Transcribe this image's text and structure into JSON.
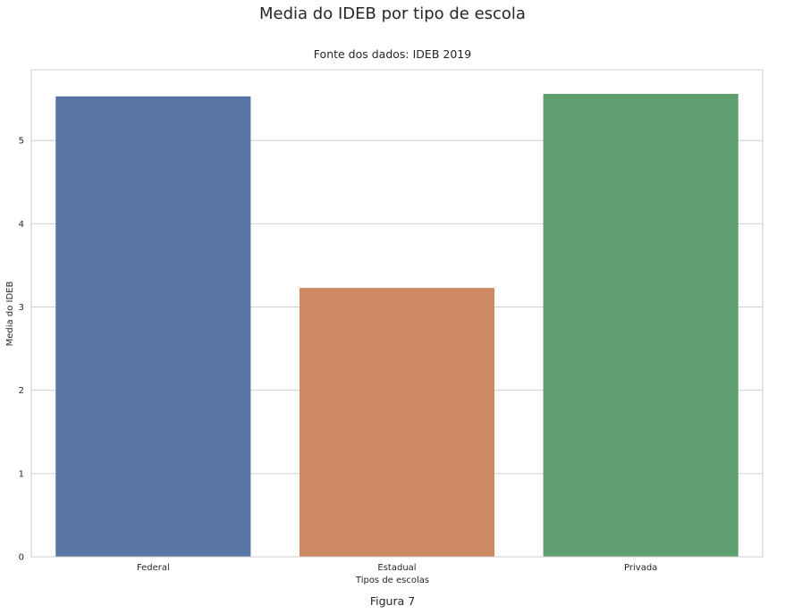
{
  "chart_data": {
    "type": "bar",
    "suptitle": "Media do IDEB por tipo de escola",
    "title": "Fonte dos dados: IDEB 2019",
    "categories": [
      "Federal",
      "Estadual",
      "Privada"
    ],
    "values": [
      5.53,
      3.23,
      5.56
    ],
    "colors": [
      "#5975a4",
      "#cc8963",
      "#5f9e6e"
    ],
    "xlabel": "Tipos de escolas",
    "ylabel": "Media do IDEB",
    "ylim": [
      0,
      5.85
    ],
    "yticks": [
      0,
      1,
      2,
      3,
      4,
      5
    ],
    "grid": true,
    "caption": "Figura 7"
  }
}
